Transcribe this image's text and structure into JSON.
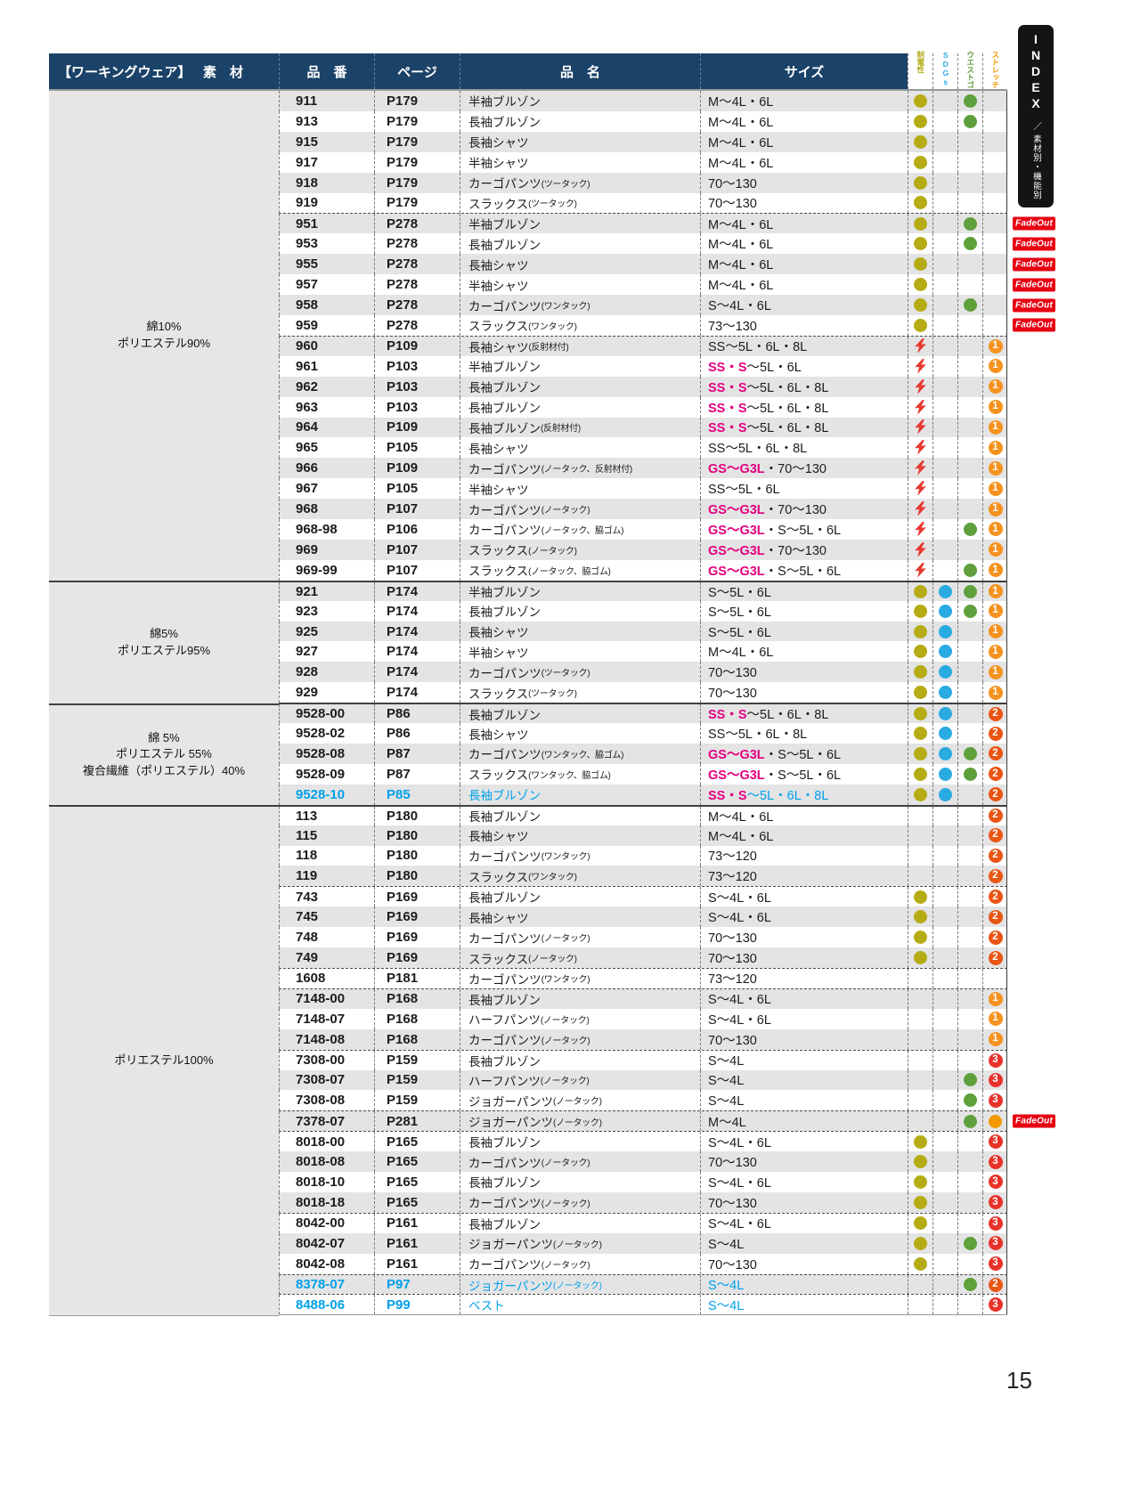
{
  "page": {
    "number": "15"
  },
  "index_tab": {
    "title": "INDEX",
    "subtitle": "／ 素材別・機能別"
  },
  "fadeout_label": "FadeOut",
  "header": {
    "category": "【ワーキングウェア】",
    "material": "素　材",
    "code": "品　番",
    "page": "ページ",
    "name": "品　名",
    "size": "サイズ",
    "icon_cols": [
      {
        "label": "制電性",
        "color": "#B3AA17"
      },
      {
        "label": "SDGs",
        "color": "#29ABE2"
      },
      {
        "label": "ウエストゴム",
        "color": "#5E9C3A"
      },
      {
        "label": "ストレッチ",
        "color": "#F39800"
      }
    ]
  },
  "icon_colors": {
    "olive": "#B5AC15",
    "cyan": "#29ABE2",
    "green": "#5FA03C",
    "orange": "#F39800",
    "bolt": "#E8382F",
    "n1": "#F6921E",
    "n2": "#EA5514",
    "n3": "#E8322A"
  },
  "materials": [
    {
      "lines": [
        "綿10%",
        "ポリエステル90%"
      ],
      "rows": 24
    },
    {
      "lines": [
        "綿5%",
        "ポリエステル95%"
      ],
      "rows": 6
    },
    {
      "lines": [
        "綿 5%",
        "ポリエステル 55%",
        "複合繊維（ポリエステル）40%"
      ],
      "rows": 5
    },
    {
      "lines": [
        "ポリエステル100%"
      ],
      "rows": 25
    }
  ],
  "rows": [
    {
      "code": "911",
      "page": "P179",
      "name": "半袖ブルゾン",
      "note": "",
      "szhl": "",
      "sz": "M〜4L・6L",
      "ic": [
        "olive",
        "",
        "green",
        ""
      ],
      "fade": false,
      "sep": "",
      "accent": ""
    },
    {
      "code": "913",
      "page": "P179",
      "name": "長袖ブルゾン",
      "note": "",
      "szhl": "",
      "sz": "M〜4L・6L",
      "ic": [
        "olive",
        "",
        "green",
        ""
      ],
      "fade": false,
      "sep": "",
      "accent": ""
    },
    {
      "code": "915",
      "page": "P179",
      "name": "長袖シャツ",
      "note": "",
      "szhl": "",
      "sz": "M〜4L・6L",
      "ic": [
        "olive",
        "",
        "",
        ""
      ],
      "fade": false,
      "sep": "",
      "accent": ""
    },
    {
      "code": "917",
      "page": "P179",
      "name": "半袖シャツ",
      "note": "",
      "szhl": "",
      "sz": "M〜4L・6L",
      "ic": [
        "olive",
        "",
        "",
        ""
      ],
      "fade": false,
      "sep": "",
      "accent": ""
    },
    {
      "code": "918",
      "page": "P179",
      "name": "カーゴパンツ",
      "note": "(ツータック)",
      "szhl": "",
      "sz": "70〜130",
      "ic": [
        "olive",
        "",
        "",
        ""
      ],
      "fade": false,
      "sep": "",
      "accent": ""
    },
    {
      "code": "919",
      "page": "P179",
      "name": "スラックス",
      "note": "(ツータック)",
      "szhl": "",
      "sz": "70〜130",
      "ic": [
        "olive",
        "",
        "",
        ""
      ],
      "fade": false,
      "sep": "",
      "accent": ""
    },
    {
      "code": "951",
      "page": "P278",
      "name": "半袖ブルゾン",
      "note": "",
      "szhl": "",
      "sz": "M〜4L・6L",
      "ic": [
        "olive",
        "",
        "green",
        ""
      ],
      "fade": true,
      "sep": "d",
      "accent": ""
    },
    {
      "code": "953",
      "page": "P278",
      "name": "長袖ブルゾン",
      "note": "",
      "szhl": "",
      "sz": "M〜4L・6L",
      "ic": [
        "olive",
        "",
        "green",
        ""
      ],
      "fade": true,
      "sep": "",
      "accent": ""
    },
    {
      "code": "955",
      "page": "P278",
      "name": "長袖シャツ",
      "note": "",
      "szhl": "",
      "sz": "M〜4L・6L",
      "ic": [
        "olive",
        "",
        "",
        ""
      ],
      "fade": true,
      "sep": "",
      "accent": ""
    },
    {
      "code": "957",
      "page": "P278",
      "name": "半袖シャツ",
      "note": "",
      "szhl": "",
      "sz": "M〜4L・6L",
      "ic": [
        "olive",
        "",
        "",
        ""
      ],
      "fade": true,
      "sep": "",
      "accent": ""
    },
    {
      "code": "958",
      "page": "P278",
      "name": "カーゴパンツ",
      "note": "(ワンタック)",
      "szhl": "",
      "sz": "S〜4L・6L",
      "ic": [
        "olive",
        "",
        "green",
        ""
      ],
      "fade": true,
      "sep": "",
      "accent": ""
    },
    {
      "code": "959",
      "page": "P278",
      "name": "スラックス",
      "note": "(ワンタック)",
      "szhl": "",
      "sz": "73〜130",
      "ic": [
        "olive",
        "",
        "",
        ""
      ],
      "fade": true,
      "sep": "",
      "accent": ""
    },
    {
      "code": "960",
      "page": "P109",
      "name": "長袖シャツ",
      "note": "(反射材付)",
      "szhl": "",
      "sz": "SS〜5L・6L・8L",
      "ic": [
        "bolt",
        "",
        "",
        "n1"
      ],
      "fade": false,
      "sep": "d",
      "accent": ""
    },
    {
      "code": "961",
      "page": "P103",
      "name": "半袖ブルゾン",
      "note": "",
      "szhl": "SS・S",
      "sz": "〜5L・6L",
      "ic": [
        "bolt",
        "",
        "",
        "n1"
      ],
      "fade": false,
      "sep": "",
      "accent": ""
    },
    {
      "code": "962",
      "page": "P103",
      "name": "長袖ブルゾン",
      "note": "",
      "szhl": "SS・S",
      "sz": "〜5L・6L・8L",
      "ic": [
        "bolt",
        "",
        "",
        "n1"
      ],
      "fade": false,
      "sep": "",
      "accent": ""
    },
    {
      "code": "963",
      "page": "P103",
      "name": "長袖ブルゾン",
      "note": "",
      "szhl": "SS・S",
      "sz": "〜5L・6L・8L",
      "ic": [
        "bolt",
        "",
        "",
        "n1"
      ],
      "fade": false,
      "sep": "",
      "accent": ""
    },
    {
      "code": "964",
      "page": "P109",
      "name": "長袖ブルゾン",
      "note": "(反射材付)",
      "szhl": "SS・S",
      "sz": "〜5L・6L・8L",
      "ic": [
        "bolt",
        "",
        "",
        "n1"
      ],
      "fade": false,
      "sep": "",
      "accent": ""
    },
    {
      "code": "965",
      "page": "P105",
      "name": "長袖シャツ",
      "note": "",
      "szhl": "",
      "sz": "SS〜5L・6L・8L",
      "ic": [
        "bolt",
        "",
        "",
        "n1"
      ],
      "fade": false,
      "sep": "",
      "accent": ""
    },
    {
      "code": "966",
      "page": "P109",
      "name": "カーゴパンツ",
      "note": "(ノータック、反射材付)",
      "szhl": "GS〜G3L",
      "sz": "・70〜130",
      "ic": [
        "bolt",
        "",
        "",
        "n1"
      ],
      "fade": false,
      "sep": "",
      "accent": ""
    },
    {
      "code": "967",
      "page": "P105",
      "name": "半袖シャツ",
      "note": "",
      "szhl": "",
      "sz": "SS〜5L・6L",
      "ic": [
        "bolt",
        "",
        "",
        "n1"
      ],
      "fade": false,
      "sep": "",
      "accent": ""
    },
    {
      "code": "968",
      "page": "P107",
      "name": "カーゴパンツ",
      "note": "(ノータック)",
      "szhl": "GS〜G3L",
      "sz": "・70〜130",
      "ic": [
        "bolt",
        "",
        "",
        "n1"
      ],
      "fade": false,
      "sep": "",
      "accent": ""
    },
    {
      "code": "968-98",
      "page": "P106",
      "name": "カーゴパンツ",
      "note": "(ノータック、脇ゴム)",
      "szhl": "GS〜G3L",
      "sz": "・S〜5L・6L",
      "ic": [
        "bolt",
        "",
        "green",
        "n1"
      ],
      "fade": false,
      "sep": "",
      "accent": ""
    },
    {
      "code": "969",
      "page": "P107",
      "name": "スラックス",
      "note": "(ノータック)",
      "szhl": "GS〜G3L",
      "sz": "・70〜130",
      "ic": [
        "bolt",
        "",
        "",
        "n1"
      ],
      "fade": false,
      "sep": "",
      "accent": ""
    },
    {
      "code": "969-99",
      "page": "P107",
      "name": "スラックス",
      "note": "(ノータック、脇ゴム)",
      "szhl": "GS〜G3L",
      "sz": "・S〜5L・6L",
      "ic": [
        "bolt",
        "",
        "green",
        "n1"
      ],
      "fade": false,
      "sep": "",
      "accent": ""
    },
    {
      "code": "921",
      "page": "P174",
      "name": "半袖ブルゾン",
      "note": "",
      "szhl": "",
      "sz": "S〜5L・6L",
      "ic": [
        "olive",
        "cyan",
        "green",
        "n1"
      ],
      "fade": false,
      "sep": "s",
      "accent": ""
    },
    {
      "code": "923",
      "page": "P174",
      "name": "長袖ブルゾン",
      "note": "",
      "szhl": "",
      "sz": "S〜5L・6L",
      "ic": [
        "olive",
        "cyan",
        "green",
        "n1"
      ],
      "fade": false,
      "sep": "",
      "accent": ""
    },
    {
      "code": "925",
      "page": "P174",
      "name": "長袖シャツ",
      "note": "",
      "szhl": "",
      "sz": "S〜5L・6L",
      "ic": [
        "olive",
        "cyan",
        "",
        "n1"
      ],
      "fade": false,
      "sep": "",
      "accent": ""
    },
    {
      "code": "927",
      "page": "P174",
      "name": "半袖シャツ",
      "note": "",
      "szhl": "",
      "sz": "M〜4L・6L",
      "ic": [
        "olive",
        "cyan",
        "",
        "n1"
      ],
      "fade": false,
      "sep": "",
      "accent": ""
    },
    {
      "code": "928",
      "page": "P174",
      "name": "カーゴパンツ",
      "note": "(ツータック)",
      "szhl": "",
      "sz": "70〜130",
      "ic": [
        "olive",
        "cyan",
        "",
        "n1"
      ],
      "fade": false,
      "sep": "",
      "accent": ""
    },
    {
      "code": "929",
      "page": "P174",
      "name": "スラックス",
      "note": "(ツータック)",
      "szhl": "",
      "sz": "70〜130",
      "ic": [
        "olive",
        "cyan",
        "",
        "n1"
      ],
      "fade": false,
      "sep": "",
      "accent": ""
    },
    {
      "code": "9528-00",
      "page": "P86",
      "name": "長袖ブルゾン",
      "note": "",
      "szhl": "SS・S",
      "sz": "〜5L・6L・8L",
      "ic": [
        "olive",
        "cyan",
        "",
        "n2"
      ],
      "fade": false,
      "sep": "s",
      "accent": ""
    },
    {
      "code": "9528-02",
      "page": "P86",
      "name": "長袖シャツ",
      "note": "",
      "szhl": "",
      "sz": "SS〜5L・6L・8L",
      "ic": [
        "olive",
        "cyan",
        "",
        "n2"
      ],
      "fade": false,
      "sep": "",
      "accent": ""
    },
    {
      "code": "9528-08",
      "page": "P87",
      "name": "カーゴパンツ",
      "note": "(ワンタック、脇ゴム)",
      "szhl": "GS〜G3L",
      "sz": "・S〜5L・6L",
      "ic": [
        "olive",
        "cyan",
        "green",
        "n2"
      ],
      "fade": false,
      "sep": "",
      "accent": ""
    },
    {
      "code": "9528-09",
      "page": "P87",
      "name": "スラックス",
      "note": "(ワンタック、脇ゴム)",
      "szhl": "GS〜G3L",
      "sz": "・S〜5L・6L",
      "ic": [
        "olive",
        "cyan",
        "green",
        "n2"
      ],
      "fade": false,
      "sep": "",
      "accent": ""
    },
    {
      "code": "9528-10",
      "page": "P85",
      "name": "長袖ブルゾン",
      "note": "",
      "szhl": "SS・S",
      "sz": "〜5L・6L・8L",
      "ic": [
        "olive",
        "cyan",
        "",
        "n2"
      ],
      "fade": false,
      "sep": "",
      "accent": "cyan"
    },
    {
      "code": "113",
      "page": "P180",
      "name": "長袖ブルゾン",
      "note": "",
      "szhl": "",
      "sz": "M〜4L・6L",
      "ic": [
        "",
        "",
        "",
        "n2"
      ],
      "fade": false,
      "sep": "s",
      "accent": ""
    },
    {
      "code": "115",
      "page": "P180",
      "name": "長袖シャツ",
      "note": "",
      "szhl": "",
      "sz": "M〜4L・6L",
      "ic": [
        "",
        "",
        "",
        "n2"
      ],
      "fade": false,
      "sep": "",
      "accent": ""
    },
    {
      "code": "118",
      "page": "P180",
      "name": "カーゴパンツ",
      "note": "(ワンタック)",
      "szhl": "",
      "sz": "73〜120",
      "ic": [
        "",
        "",
        "",
        "n2"
      ],
      "fade": false,
      "sep": "",
      "accent": ""
    },
    {
      "code": "119",
      "page": "P180",
      "name": "スラックス",
      "note": "(ワンタック)",
      "szhl": "",
      "sz": "73〜120",
      "ic": [
        "",
        "",
        "",
        "n2"
      ],
      "fade": false,
      "sep": "",
      "accent": ""
    },
    {
      "code": "743",
      "page": "P169",
      "name": "長袖ブルゾン",
      "note": "",
      "szhl": "",
      "sz": "S〜4L・6L",
      "ic": [
        "olive",
        "",
        "",
        "n2"
      ],
      "fade": false,
      "sep": "d",
      "accent": ""
    },
    {
      "code": "745",
      "page": "P169",
      "name": "長袖シャツ",
      "note": "",
      "szhl": "",
      "sz": "S〜4L・6L",
      "ic": [
        "olive",
        "",
        "",
        "n2"
      ],
      "fade": false,
      "sep": "",
      "accent": ""
    },
    {
      "code": "748",
      "page": "P169",
      "name": "カーゴパンツ",
      "note": "(ノータック)",
      "szhl": "",
      "sz": "70〜130",
      "ic": [
        "olive",
        "",
        "",
        "n2"
      ],
      "fade": false,
      "sep": "",
      "accent": ""
    },
    {
      "code": "749",
      "page": "P169",
      "name": "スラックス",
      "note": "(ノータック)",
      "szhl": "",
      "sz": "70〜130",
      "ic": [
        "olive",
        "",
        "",
        "n2"
      ],
      "fade": false,
      "sep": "",
      "accent": ""
    },
    {
      "code": "1608",
      "page": "P181",
      "name": "カーゴパンツ",
      "note": "(ワンタック)",
      "szhl": "",
      "sz": "73〜120",
      "ic": [
        "",
        "",
        "",
        ""
      ],
      "fade": false,
      "sep": "d",
      "accent": ""
    },
    {
      "code": "7148-00",
      "page": "P168",
      "name": "長袖ブルゾン",
      "note": "",
      "szhl": "",
      "sz": "S〜4L・6L",
      "ic": [
        "",
        "",
        "",
        "n1"
      ],
      "fade": false,
      "sep": "d",
      "accent": ""
    },
    {
      "code": "7148-07",
      "page": "P168",
      "name": "ハーフパンツ",
      "note": "(ノータック)",
      "szhl": "",
      "sz": "S〜4L・6L",
      "ic": [
        "",
        "",
        "",
        "n1"
      ],
      "fade": false,
      "sep": "",
      "accent": ""
    },
    {
      "code": "7148-08",
      "page": "P168",
      "name": "カーゴパンツ",
      "note": "(ノータック)",
      "szhl": "",
      "sz": "70〜130",
      "ic": [
        "",
        "",
        "",
        "n1"
      ],
      "fade": false,
      "sep": "",
      "accent": ""
    },
    {
      "code": "7308-00",
      "page": "P159",
      "name": "長袖ブルゾン",
      "note": "",
      "szhl": "",
      "sz": "S〜4L",
      "ic": [
        "",
        "",
        "",
        "n3"
      ],
      "fade": false,
      "sep": "d",
      "accent": ""
    },
    {
      "code": "7308-07",
      "page": "P159",
      "name": "ハーフパンツ",
      "note": "(ノータック)",
      "szhl": "",
      "sz": "S〜4L",
      "ic": [
        "",
        "",
        "green",
        "n3"
      ],
      "fade": false,
      "sep": "",
      "accent": ""
    },
    {
      "code": "7308-08",
      "page": "P159",
      "name": "ジョガーパンツ",
      "note": "(ノータック)",
      "szhl": "",
      "sz": "S〜4L",
      "ic": [
        "",
        "",
        "green",
        "n3"
      ],
      "fade": false,
      "sep": "",
      "accent": ""
    },
    {
      "code": "7378-07",
      "page": "P281",
      "name": "ジョガーパンツ",
      "note": "(ノータック)",
      "szhl": "",
      "sz": "M〜4L",
      "ic": [
        "",
        "",
        "green",
        "orange"
      ],
      "fade": true,
      "sep": "d",
      "accent": ""
    },
    {
      "code": "8018-00",
      "page": "P165",
      "name": "長袖ブルゾン",
      "note": "",
      "szhl": "",
      "sz": "S〜4L・6L",
      "ic": [
        "olive",
        "",
        "",
        "n3"
      ],
      "fade": false,
      "sep": "d",
      "accent": ""
    },
    {
      "code": "8018-08",
      "page": "P165",
      "name": "カーゴパンツ",
      "note": "(ノータック)",
      "szhl": "",
      "sz": "70〜130",
      "ic": [
        "olive",
        "",
        "",
        "n3"
      ],
      "fade": false,
      "sep": "",
      "accent": ""
    },
    {
      "code": "8018-10",
      "page": "P165",
      "name": "長袖ブルゾン",
      "note": "",
      "szhl": "",
      "sz": "S〜4L・6L",
      "ic": [
        "olive",
        "",
        "",
        "n3"
      ],
      "fade": false,
      "sep": "",
      "accent": ""
    },
    {
      "code": "8018-18",
      "page": "P165",
      "name": "カーゴパンツ",
      "note": "(ノータック)",
      "szhl": "",
      "sz": "70〜130",
      "ic": [
        "olive",
        "",
        "",
        "n3"
      ],
      "fade": false,
      "sep": "",
      "accent": ""
    },
    {
      "code": "8042-00",
      "page": "P161",
      "name": "長袖ブルゾン",
      "note": "",
      "szhl": "",
      "sz": "S〜4L・6L",
      "ic": [
        "olive",
        "",
        "",
        "n3"
      ],
      "fade": false,
      "sep": "d",
      "accent": ""
    },
    {
      "code": "8042-07",
      "page": "P161",
      "name": "ジョガーパンツ",
      "note": "(ノータック)",
      "szhl": "",
      "sz": "S〜4L",
      "ic": [
        "olive",
        "",
        "green",
        "n3"
      ],
      "fade": false,
      "sep": "",
      "accent": ""
    },
    {
      "code": "8042-08",
      "page": "P161",
      "name": "カーゴパンツ",
      "note": "(ノータック)",
      "szhl": "",
      "sz": "70〜130",
      "ic": [
        "olive",
        "",
        "",
        "n3"
      ],
      "fade": false,
      "sep": "",
      "accent": ""
    },
    {
      "code": "8378-07",
      "page": "P97",
      "name": "ジョガーパンツ",
      "note": "(ノータック)",
      "szhl": "",
      "sz": "S〜4L",
      "ic": [
        "",
        "",
        "green",
        "n2"
      ],
      "fade": false,
      "sep": "d",
      "accent": "cyan"
    },
    {
      "code": "8488-06",
      "page": "P99",
      "name": "ベスト",
      "note": "",
      "szhl": "",
      "sz": "S〜4L",
      "ic": [
        "",
        "",
        "",
        "n3"
      ],
      "fade": false,
      "sep": "d",
      "accent": "cyan"
    }
  ]
}
